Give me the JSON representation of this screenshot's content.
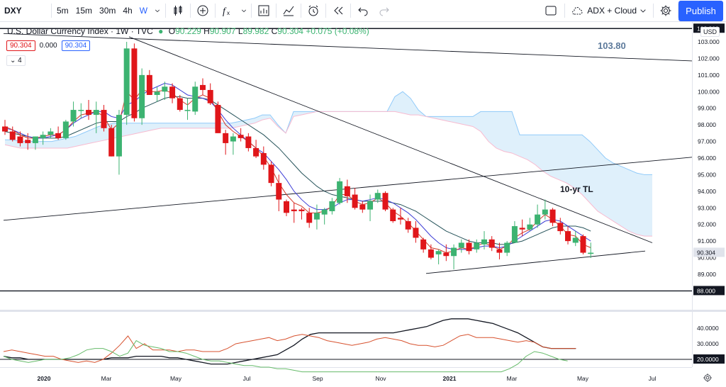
{
  "toolbar": {
    "symbol": "DXY",
    "intervals": [
      "5m",
      "15m",
      "30m",
      "4h",
      "W"
    ],
    "indicators_label": "ADX + Cloud",
    "publish_label": "Publish"
  },
  "legend": {
    "title": "U.S. Dollar Currency Index · 1W · TVC",
    "o_label": "O",
    "o": "90.229",
    "h_label": "H",
    "h": "90.907",
    "l_label": "L",
    "l": "89.982",
    "c_label": "C",
    "c": "90.304",
    "change": "+0.075 (+0.08%)",
    "bid": "90.304",
    "spread": "0.000",
    "ask": "90.304",
    "indicator_count": "4"
  },
  "currency_button": "USD",
  "annotations": {
    "level_label": "103.80",
    "trendline_label": "10-yr TL"
  },
  "price_axis": {
    "ticks": [
      "103.000",
      "102.000",
      "101.000",
      "100.000",
      "99.000",
      "98.000",
      "97.000",
      "96.000",
      "95.000",
      "94.000",
      "93.000",
      "92.000",
      "91.000",
      "90.000",
      "89.000"
    ],
    "tags": [
      "103.800",
      "90.304",
      "88.000"
    ]
  },
  "adx_axis": {
    "ticks": [
      "40.0000",
      "30.0000"
    ],
    "tags": [
      "20.0000"
    ]
  },
  "time_axis": [
    "2020",
    "Mar",
    "May",
    "Jul",
    "Sep",
    "Nov",
    "2021",
    "Mar",
    "May",
    "Jul"
  ],
  "colors": {
    "up": "#3cb371",
    "down": "#e0161a",
    "cloud_bull": "#dceefb",
    "cloud_bear": "#fce4ec",
    "accent": "#2962ff"
  },
  "chart_data": {
    "type": "candlestick",
    "ylim": [
      88.5,
      104.0
    ],
    "adx_ylim": [
      14,
      47
    ],
    "candles": [
      [
        97.9,
        98.3,
        97.4,
        97.6
      ],
      [
        97.6,
        97.9,
        97.0,
        97.1
      ],
      [
        97.3,
        97.6,
        96.7,
        96.9
      ],
      [
        97.1,
        97.5,
        96.5,
        96.9
      ],
      [
        96.9,
        97.3,
        96.5,
        97.3
      ],
      [
        97.2,
        97.6,
        96.8,
        97.4
      ],
      [
        97.4,
        97.8,
        97.2,
        97.6
      ],
      [
        97.5,
        97.9,
        97.1,
        97.2
      ],
      [
        97.2,
        98.3,
        97.1,
        98.2
      ],
      [
        98.2,
        99.4,
        97.9,
        98.9
      ],
      [
        98.9,
        99.3,
        98.4,
        98.9
      ],
      [
        98.9,
        99.5,
        98.3,
        98.6
      ],
      [
        98.6,
        99.4,
        97.5,
        98.9
      ],
      [
        98.9,
        99.2,
        97.6,
        97.8
      ],
      [
        97.8,
        98.0,
        96.1,
        96.1
      ],
      [
        96.1,
        98.9,
        95.0,
        98.6
      ],
      [
        98.6,
        103.0,
        98.0,
        102.6
      ],
      [
        102.6,
        102.9,
        98.2,
        98.4
      ],
      [
        98.4,
        101.4,
        98.0,
        101.0
      ],
      [
        101.0,
        101.3,
        99.8,
        99.8
      ],
      [
        99.8,
        100.3,
        99.4,
        100.0
      ],
      [
        100.0,
        100.6,
        99.5,
        100.3
      ],
      [
        100.3,
        100.5,
        99.3,
        99.6
      ],
      [
        99.6,
        99.8,
        98.8,
        98.9
      ],
      [
        98.9,
        99.6,
        98.3,
        98.9
      ],
      [
        98.8,
        100.6,
        98.6,
        100.3
      ],
      [
        100.4,
        100.8,
        99.8,
        100.1
      ],
      [
        100.1,
        100.5,
        99.2,
        99.3
      ],
      [
        99.2,
        99.4,
        97.5,
        97.5
      ],
      [
        97.5,
        97.7,
        96.2,
        96.9
      ],
      [
        97.0,
        97.5,
        96.2,
        97.3
      ],
      [
        97.4,
        97.8,
        97.0,
        97.2
      ],
      [
        97.3,
        97.5,
        96.4,
        96.6
      ],
      [
        96.6,
        97.1,
        96.0,
        96.1
      ],
      [
        96.3,
        96.7,
        95.3,
        95.6
      ],
      [
        95.6,
        95.8,
        94.3,
        94.5
      ],
      [
        94.5,
        95.0,
        92.8,
        93.5
      ],
      [
        93.4,
        93.5,
        92.5,
        92.7
      ],
      [
        92.9,
        93.3,
        92.1,
        92.8
      ],
      [
        92.9,
        93.0,
        92.3,
        92.8
      ],
      [
        92.7,
        93.0,
        91.8,
        92.1
      ],
      [
        92.3,
        93.2,
        91.7,
        92.7
      ],
      [
        92.6,
        93.0,
        92.0,
        92.9
      ],
      [
        92.8,
        93.6,
        92.6,
        93.4
      ],
      [
        93.3,
        94.8,
        93.2,
        94.6
      ],
      [
        94.3,
        94.7,
        93.3,
        93.7
      ],
      [
        93.8,
        94.2,
        92.9,
        93.0
      ],
      [
        93.2,
        93.4,
        92.7,
        92.9
      ],
      [
        92.9,
        93.8,
        92.2,
        93.4
      ],
      [
        93.5,
        94.1,
        93.3,
        93.9
      ],
      [
        93.9,
        94.0,
        92.8,
        92.9
      ],
      [
        92.9,
        93.0,
        92.1,
        92.2
      ],
      [
        92.4,
        93.0,
        92.0,
        92.3
      ],
      [
        92.2,
        92.4,
        91.5,
        91.7
      ],
      [
        91.8,
        92.2,
        90.9,
        91.2
      ],
      [
        91.1,
        91.2,
        90.3,
        90.5
      ],
      [
        90.5,
        90.8,
        89.9,
        90.0
      ],
      [
        90.2,
        90.5,
        89.6,
        90.4
      ],
      [
        90.3,
        90.8,
        89.8,
        90.1
      ],
      [
        90.1,
        90.8,
        89.3,
        90.6
      ],
      [
        90.6,
        91.1,
        90.3,
        90.9
      ],
      [
        90.9,
        91.1,
        90.2,
        90.4
      ],
      [
        90.5,
        91.1,
        90.3,
        90.9
      ],
      [
        90.8,
        91.6,
        90.5,
        91.1
      ],
      [
        91.1,
        91.3,
        90.4,
        90.6
      ],
      [
        90.5,
        90.9,
        89.9,
        90.3
      ],
      [
        90.3,
        91.0,
        90.1,
        90.9
      ],
      [
        90.9,
        92.2,
        90.9,
        91.9
      ],
      [
        91.8,
        92.3,
        91.3,
        91.7
      ],
      [
        91.7,
        92.4,
        91.6,
        92.0
      ],
      [
        92.0,
        93.2,
        91.8,
        92.6
      ],
      [
        92.6,
        93.5,
        92.3,
        92.9
      ],
      [
        92.9,
        93.0,
        91.9,
        92.1
      ],
      [
        92.1,
        92.4,
        91.4,
        91.6
      ],
      [
        91.6,
        91.9,
        90.8,
        91.0
      ],
      [
        90.9,
        91.6,
        90.7,
        91.2
      ],
      [
        91.3,
        91.4,
        90.2,
        90.3
      ],
      [
        90.23,
        90.91,
        89.98,
        90.3
      ]
    ],
    "sma_fast": [
      97.8,
      97.7,
      97.5,
      97.3,
      97.2,
      97.2,
      97.3,
      97.4,
      97.7,
      98.1,
      98.4,
      98.6,
      98.8,
      98.8,
      98.5,
      98.4,
      99.2,
      99.4,
      99.8,
      100.1,
      100.3,
      100.5,
      100.4,
      100.1,
      99.8,
      99.7,
      99.6,
      99.4,
      98.9,
      98.3,
      97.8,
      97.4,
      97.0,
      96.6,
      96.3,
      95.8,
      95.3,
      94.7,
      94.0,
      93.5,
      93.1,
      92.9,
      92.9,
      93.0,
      93.3,
      93.5,
      93.5,
      93.4,
      93.5,
      93.6,
      93.5,
      93.3,
      93.0,
      92.7,
      92.3,
      91.8,
      91.3,
      90.9,
      90.6,
      90.5,
      90.5,
      90.5,
      90.6,
      90.7,
      90.7,
      90.6,
      90.7,
      91.0,
      91.3,
      91.6,
      91.9,
      92.2,
      92.3,
      92.2,
      91.9,
      91.6,
      91.3,
      91.0
    ],
    "sma_slow": [
      97.6,
      97.5,
      97.4,
      97.3,
      97.2,
      97.2,
      97.2,
      97.2,
      97.3,
      97.5,
      97.7,
      97.9,
      98.1,
      98.2,
      98.2,
      98.2,
      98.5,
      98.7,
      99.0,
      99.2,
      99.4,
      99.6,
      99.7,
      99.7,
      99.6,
      99.6,
      99.6,
      99.5,
      99.2,
      98.9,
      98.6,
      98.3,
      98.0,
      97.7,
      97.4,
      97.0,
      96.6,
      96.1,
      95.6,
      95.1,
      94.7,
      94.3,
      94.0,
      93.8,
      93.7,
      93.6,
      93.5,
      93.4,
      93.4,
      93.4,
      93.4,
      93.3,
      93.2,
      93.0,
      92.8,
      92.5,
      92.2,
      91.9,
      91.6,
      91.4,
      91.2,
      91.0,
      90.9,
      90.9,
      90.9,
      90.8,
      90.8,
      90.9,
      91.0,
      91.2,
      91.4,
      91.6,
      91.8,
      91.9,
      91.9,
      91.9,
      91.8,
      91.6
    ],
    "ema_red": [
      97.9,
      97.7,
      97.4,
      97.2,
      97.2,
      97.3,
      97.4,
      97.4,
      97.7,
      98.2,
      98.6,
      98.7,
      98.8,
      98.5,
      97.7,
      98.1,
      100.0,
      99.5,
      100.1,
      100.0,
      100.0,
      100.1,
      99.9,
      99.5,
      99.2,
      99.6,
      99.8,
      99.6,
      98.8,
      98.0,
      97.6,
      97.3,
      97.0,
      96.6,
      96.1,
      95.4,
      94.5,
      93.8,
      93.3,
      93.1,
      92.7,
      92.7,
      92.8,
      93.1,
      93.8,
      93.8,
      93.4,
      93.2,
      93.3,
      93.6,
      93.3,
      92.8,
      92.5,
      92.1,
      91.6,
      91.1,
      90.6,
      90.5,
      90.3,
      90.4,
      90.6,
      90.5,
      90.7,
      90.9,
      90.7,
      90.5,
      90.7,
      91.2,
      91.5,
      91.7,
      92.2,
      92.6,
      92.3,
      91.9,
      91.4,
      91.3,
      90.8,
      90.6
    ],
    "cloud_top": [
      97.1,
      97.1,
      97.0,
      97.0,
      97.0,
      97.0,
      97.0,
      97.1,
      97.2,
      97.3,
      97.5,
      97.7,
      97.9,
      98.0,
      98.1,
      98.1,
      98.1,
      98.1,
      98.1,
      98.1,
      98.1,
      98.1,
      98.1,
      98.1,
      98.1,
      98.1,
      98.1,
      98.1,
      98.1,
      98.1,
      98.2,
      98.3,
      98.4,
      98.6,
      98.6,
      98.0,
      97.5,
      98.8,
      98.8,
      98.8,
      98.8,
      98.8,
      98.8,
      98.8,
      98.8,
      98.8,
      98.8,
      98.8,
      98.8,
      98.8,
      99.7,
      100.0,
      99.6,
      98.9,
      98.5,
      98.5,
      98.5,
      98.5,
      98.5,
      98.5,
      98.5,
      98.8,
      98.8,
      98.8,
      98.8,
      98.8,
      97.4,
      97.4,
      97.4,
      97.4,
      97.4,
      97.4,
      97.4,
      97.4,
      97.4,
      97.0,
      96.5,
      96.0,
      95.7,
      95.5,
      95.3,
      95.1,
      95.0,
      95.0
    ],
    "cloud_bottom": [
      96.8,
      96.7,
      96.6,
      96.6,
      96.6,
      96.6,
      96.6,
      96.6,
      96.6,
      96.7,
      96.8,
      96.9,
      97.0,
      97.1,
      97.2,
      97.3,
      97.4,
      97.5,
      97.6,
      97.7,
      97.8,
      97.8,
      97.8,
      97.8,
      97.8,
      97.8,
      97.8,
      97.8,
      97.8,
      97.8,
      97.9,
      98.0,
      98.1,
      98.3,
      98.4,
      97.9,
      97.5,
      98.5,
      98.6,
      98.7,
      98.8,
      98.8,
      98.8,
      98.8,
      98.8,
      98.8,
      98.8,
      98.8,
      98.8,
      98.8,
      98.8,
      98.7,
      98.6,
      98.6,
      98.5,
      98.4,
      98.3,
      98.2,
      98.1,
      98.0,
      97.9,
      97.6,
      97.0,
      96.6,
      96.4,
      96.3,
      96.1,
      95.9,
      95.6,
      95.2,
      94.9,
      94.7,
      94.5,
      94.2,
      93.8,
      93.3,
      92.8,
      92.5,
      92.2,
      91.9,
      91.6,
      91.4,
      91.3,
      91.3
    ],
    "adx": [
      22,
      21,
      21,
      20,
      20,
      20,
      20,
      20,
      20,
      20,
      20,
      20,
      20,
      21,
      21,
      21,
      22,
      22,
      22,
      22,
      21,
      21,
      20,
      19,
      18,
      17,
      17,
      17,
      18,
      19,
      20,
      21,
      22,
      23,
      26,
      29,
      33,
      36,
      37,
      37,
      37,
      37,
      37,
      37,
      37,
      37,
      37,
      37,
      38,
      39,
      40,
      41,
      43,
      45,
      46,
      46,
      46,
      45,
      44,
      43,
      41,
      39,
      37,
      34,
      31,
      28,
      27,
      27,
      27,
      27
    ],
    "di_plus": [
      22,
      20,
      19,
      18,
      19,
      20,
      20,
      20,
      21,
      23,
      26,
      27,
      27,
      25,
      22,
      24,
      32,
      29,
      28,
      27,
      25,
      25,
      24,
      22,
      20,
      19,
      19,
      18,
      17,
      16,
      16,
      15,
      15,
      14,
      14,
      13,
      12,
      12,
      12,
      12,
      12,
      12,
      12,
      12,
      12,
      12,
      12,
      12,
      12,
      12,
      12,
      12,
      12,
      12,
      12,
      12,
      12,
      12,
      12,
      12,
      12,
      14,
      17,
      22,
      25,
      24,
      22,
      20,
      19
    ],
    "di_minus": [
      25,
      26,
      25,
      24,
      23,
      22,
      22,
      20,
      19,
      18,
      19,
      18,
      20,
      24,
      29,
      35,
      27,
      30,
      26,
      26,
      26,
      25,
      26,
      26,
      25,
      25,
      25,
      27,
      30,
      31,
      32,
      33,
      34,
      32,
      33,
      35,
      36,
      35,
      34,
      32,
      31,
      30,
      29,
      30,
      31,
      33,
      34,
      33,
      32,
      30,
      29,
      29,
      28,
      29,
      32,
      35,
      36,
      34,
      34,
      34,
      33,
      32,
      31,
      32,
      31,
      28,
      27,
      27,
      27,
      27
    ]
  }
}
